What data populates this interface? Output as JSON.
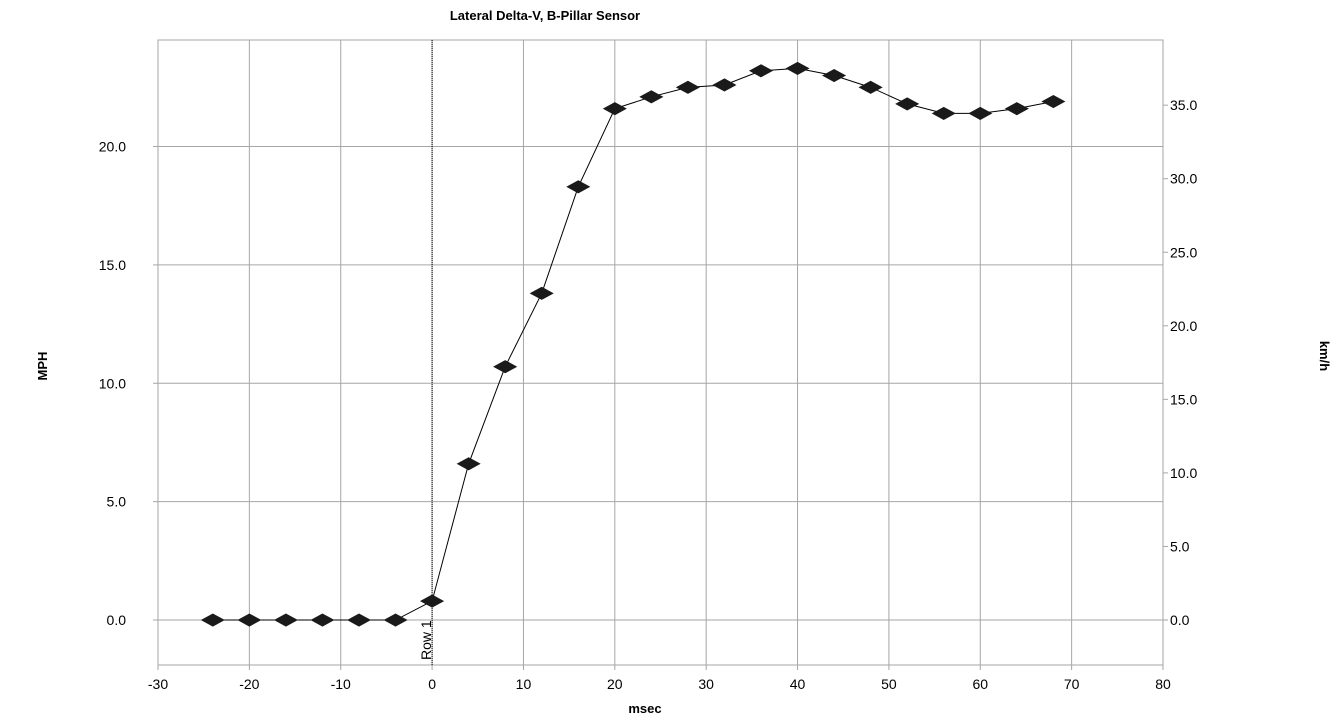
{
  "chart_data": {
    "type": "line",
    "title": "Lateral Delta-V, B-Pillar Sensor",
    "xlabel": "msec",
    "ylabel": "MPH",
    "y2label": "km/h",
    "xlim": [
      -30,
      80
    ],
    "ylim": [
      -1.9,
      24.5
    ],
    "y2lim": [
      -3.06,
      39.43
    ],
    "xticks": [
      -30,
      -20,
      -10,
      0,
      10,
      20,
      30,
      40,
      50,
      60,
      70,
      80
    ],
    "yticks": [
      0,
      5,
      10,
      15,
      20
    ],
    "y2ticks": [
      0,
      5,
      10,
      15,
      20,
      25,
      30,
      35
    ],
    "ytick_labels": [
      "0.0",
      "5.0",
      "10.0",
      "15.0",
      "20.0"
    ],
    "y2tick_labels": [
      "0.0",
      "5.0",
      "10.0",
      "15.0",
      "20.0",
      "25.0",
      "30.0",
      "35.0"
    ],
    "grid": true,
    "marker": "diamond",
    "series": [
      {
        "x": [
          -24,
          -20,
          -16,
          -12,
          -8,
          -4,
          0,
          4,
          8,
          12,
          16,
          20,
          24,
          28,
          32,
          36,
          40,
          44,
          48,
          52,
          56,
          60,
          64,
          68
        ],
        "y": [
          0.0,
          0.0,
          0.0,
          0.0,
          0.0,
          0.0,
          0.8,
          6.6,
          10.7,
          13.8,
          18.3,
          21.6,
          22.1,
          22.5,
          22.6,
          23.2,
          23.3,
          23.0,
          22.5,
          21.8,
          21.4,
          21.4,
          21.6,
          21.9
        ]
      }
    ],
    "annotations": [
      {
        "type": "vertical-line",
        "x": 0,
        "label": "Row 1"
      }
    ]
  }
}
